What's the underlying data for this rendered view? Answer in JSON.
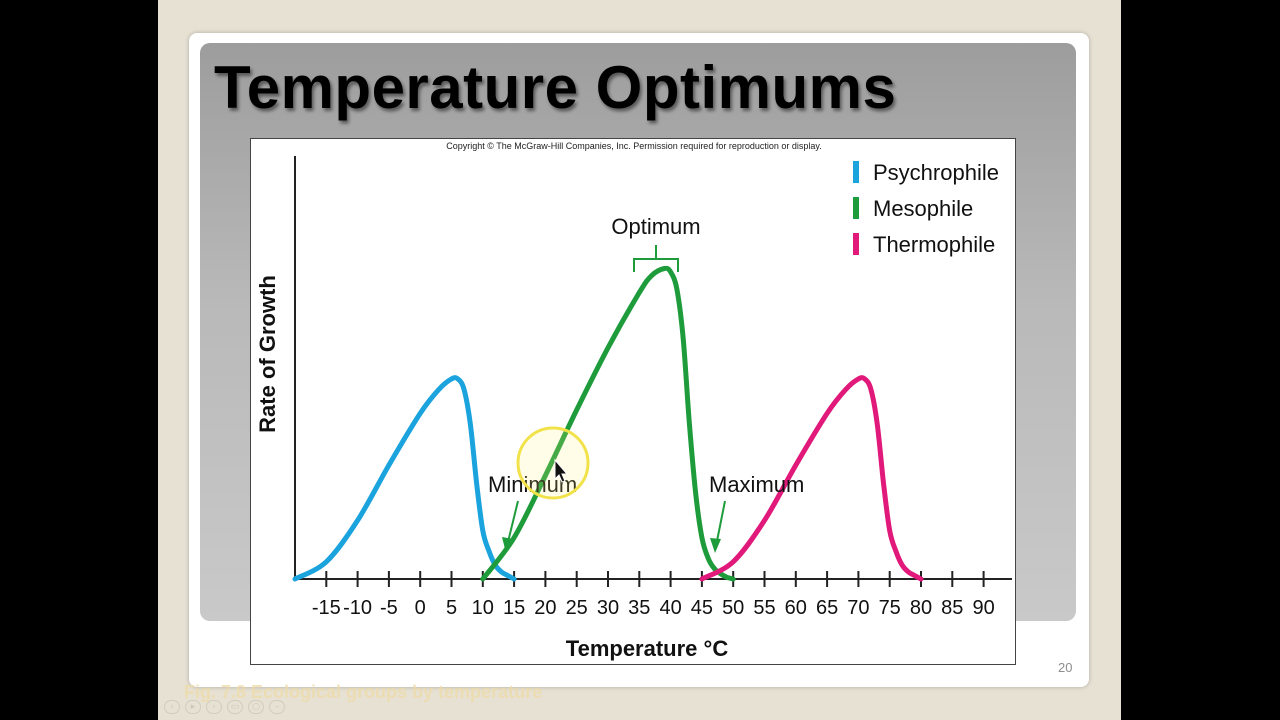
{
  "slide": {
    "title": "Temperature Optimums",
    "slide_number": "20",
    "caption": "Fig. 7.8 Ecological groups by temperature"
  },
  "figure": {
    "copyright": "Copyright © The McGraw-Hill Companies, Inc. Permission required for reproduction or display.",
    "annotations": {
      "optimum": "Optimum",
      "minimum": "Minimum",
      "maximum": "Maximum"
    }
  },
  "chart_data": {
    "type": "line",
    "xlabel": "Temperature °C",
    "ylabel": "Rate of Growth",
    "xlim": [
      -20,
      95
    ],
    "ylim": [
      0,
      100
    ],
    "x_ticks": [
      -15,
      -10,
      -5,
      0,
      5,
      10,
      15,
      20,
      25,
      30,
      35,
      40,
      45,
      50,
      55,
      60,
      65,
      70,
      75,
      80,
      85,
      90
    ],
    "legend_position": "top-right",
    "series": [
      {
        "name": "Psychrophile",
        "color": "#1aa3dd",
        "x": [
          -20,
          -15,
          -10,
          -5,
          0,
          3,
          5,
          6,
          7,
          8,
          9,
          10,
          11,
          12,
          13,
          14,
          15
        ],
        "y": [
          0,
          5,
          17,
          33,
          48,
          55,
          58,
          58,
          55,
          45,
          28,
          14,
          8,
          4,
          2,
          1,
          0
        ]
      },
      {
        "name": "Mesophile",
        "color": "#1e9c3c",
        "x": [
          10,
          15,
          20,
          25,
          30,
          35,
          37,
          39,
          40,
          41,
          42,
          43,
          44,
          45,
          46,
          47,
          48,
          49,
          50
        ],
        "y": [
          0,
          12,
          30,
          49,
          67,
          83,
          88,
          90,
          89,
          84,
          70,
          45,
          25,
          12,
          6,
          3,
          1.5,
          0.5,
          0
        ]
      },
      {
        "name": "Thermophile",
        "color": "#e0197a",
        "x": [
          45,
          50,
          55,
          60,
          65,
          68,
          70,
          71,
          72,
          73,
          74,
          75,
          76,
          77,
          78,
          79,
          80
        ],
        "y": [
          0,
          5,
          17,
          33,
          48,
          55,
          58,
          58,
          55,
          45,
          28,
          14,
          8,
          4,
          2,
          1,
          0
        ]
      }
    ]
  },
  "icons": {
    "cursor": "mouse-pointer-icon",
    "highlight": "cursor-highlight-icon"
  },
  "player_controls": [
    "prev-icon",
    "play-icon",
    "next-icon",
    "copy-icon",
    "search-icon",
    "more-icon"
  ]
}
